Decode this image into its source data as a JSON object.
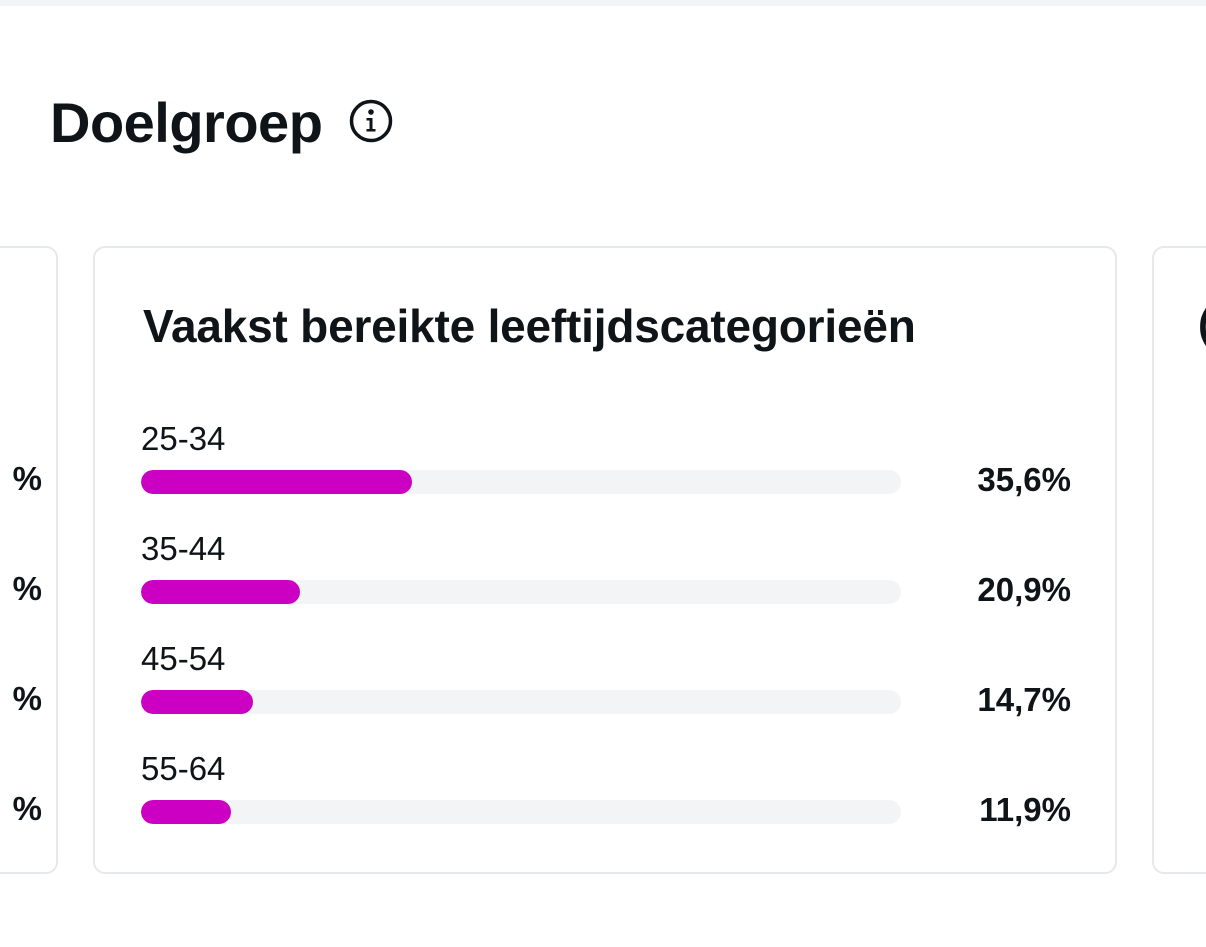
{
  "section": {
    "title": "Doelgroep",
    "info_icon": "info-circle-icon"
  },
  "left_card": {
    "clipped_values": [
      "%",
      "%",
      "%",
      "%"
    ]
  },
  "main_card": {
    "title": "Vaakst bereikte leeftijdscategorieën",
    "accent_color": "#cc00c2",
    "track_color": "#f3f4f6",
    "rows": [
      {
        "label": "25-34",
        "value": "35,6%",
        "share": 0.356
      },
      {
        "label": "35-44",
        "value": "20,9%",
        "share": 0.209
      },
      {
        "label": "45-54",
        "value": "14,7%",
        "share": 0.147
      },
      {
        "label": "55-64",
        "value": "11,9%",
        "share": 0.119
      }
    ]
  },
  "right_card": {
    "clipped_title_glyph": "("
  }
}
